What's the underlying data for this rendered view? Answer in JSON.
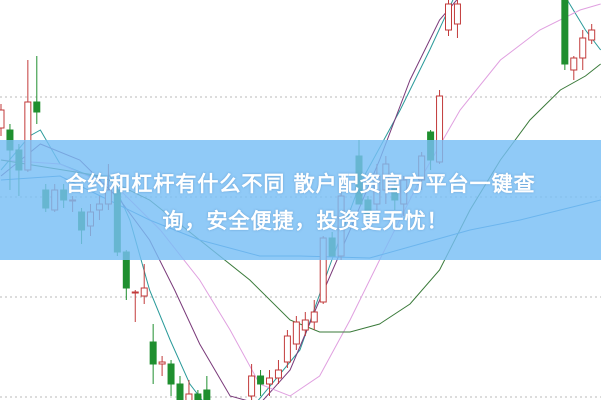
{
  "banner": {
    "line1": "合约和杠杆有什么不同 散户配资官方平台一键查",
    "line2": "询，安全便捷，投资更无忧！"
  },
  "chart_data": {
    "type": "candlestick",
    "title": "",
    "grid": true,
    "ylim": [
      0,
      100
    ],
    "xlim": [
      0,
      67
    ],
    "colors": {
      "up": "#c23a3a",
      "down": "#1f8f2f",
      "grid": "#b8b8b8",
      "banner": "#8ec8f5"
    },
    "candles": [
      {
        "day": 0,
        "open": 68,
        "close": 72.5,
        "high": 74,
        "low": 66
      },
      {
        "day": 1,
        "open": 67.5,
        "close": 62.5,
        "high": 69,
        "low": 52.5
      },
      {
        "day": 2,
        "open": 62.5,
        "close": 57.5,
        "high": 64,
        "low": 51
      },
      {
        "day": 3,
        "open": 57.5,
        "close": 74.5,
        "high": 85,
        "low": 57
      },
      {
        "day": 4,
        "open": 74.5,
        "close": 72,
        "high": 86,
        "low": 69
      },
      {
        "day": 5,
        "open": 52.5,
        "close": 48,
        "high": 54,
        "low": 47
      },
      {
        "day": 6,
        "open": 47.5,
        "close": 52.5,
        "high": 54,
        "low": 47
      },
      {
        "day": 7,
        "open": 52.5,
        "close": 50,
        "high": 54,
        "low": 48
      },
      {
        "day": 8,
        "open": 50,
        "close": 50,
        "high": 51,
        "low": 47
      },
      {
        "day": 9,
        "open": 47,
        "close": 42.5,
        "high": 48,
        "low": 39
      },
      {
        "day": 10,
        "open": 43.5,
        "close": 47,
        "high": 49,
        "low": 41
      },
      {
        "day": 11,
        "open": 47.5,
        "close": 49,
        "high": 51,
        "low": 45
      },
      {
        "day": 12,
        "open": 49,
        "close": 52.5,
        "high": 59,
        "low": 47.5
      },
      {
        "day": 13,
        "open": 52.5,
        "close": 37,
        "high": 54,
        "low": 36
      },
      {
        "day": 14,
        "open": 37,
        "close": 28,
        "high": 37.5,
        "low": 25
      },
      {
        "day": 15,
        "open": 27,
        "close": 27,
        "high": 27.5,
        "low": 19.5
      },
      {
        "day": 16,
        "open": 26,
        "close": 28,
        "high": 34,
        "low": 24
      },
      {
        "day": 17,
        "open": 14.5,
        "close": 9,
        "high": 19,
        "low": 4
      },
      {
        "day": 18,
        "open": 9,
        "close": 9.5,
        "high": 11,
        "low": 6
      },
      {
        "day": 19,
        "open": 9,
        "close": 4,
        "high": 10,
        "low": 1
      },
      {
        "day": 20,
        "open": 4,
        "close": 0,
        "high": 6,
        "low": 0
      },
      {
        "day": 21,
        "open": 0,
        "close": 1.5,
        "high": 5,
        "low": 0
      },
      {
        "day": 22,
        "open": 1.5,
        "close": 0,
        "high": 2.5,
        "low": 0
      },
      {
        "day": 23,
        "open": 2.5,
        "close": 0,
        "high": 6,
        "low": 0
      },
      {
        "day": 28,
        "open": 1,
        "close": 6,
        "high": 9,
        "low": 0
      },
      {
        "day": 29,
        "open": 6,
        "close": 4,
        "high": 7.5,
        "low": 1
      },
      {
        "day": 30,
        "open": 4,
        "close": 5.5,
        "high": 7.5,
        "low": 1
      },
      {
        "day": 31,
        "open": 5.5,
        "close": 7.5,
        "high": 10,
        "low": 4
      },
      {
        "day": 32,
        "open": 9.5,
        "close": 16,
        "high": 17.5,
        "low": 8
      },
      {
        "day": 33,
        "open": 14,
        "close": 19.5,
        "high": 21,
        "low": 12.5
      },
      {
        "day": 34,
        "open": 17.5,
        "close": 20,
        "high": 22,
        "low": 16
      },
      {
        "day": 35,
        "open": 19.5,
        "close": 22,
        "high": 25,
        "low": 17.5
      },
      {
        "day": 36,
        "open": 24.5,
        "close": 40.5,
        "high": 41,
        "low": 24
      },
      {
        "day": 37,
        "open": 40.5,
        "close": 36,
        "high": 42,
        "low": 36
      },
      {
        "day": 38,
        "open": 36,
        "close": 51,
        "high": 52.5,
        "low": 35
      },
      {
        "day": 40,
        "open": 61,
        "close": 49,
        "high": 65,
        "low": 50
      },
      {
        "day": 41,
        "open": 50,
        "close": 46,
        "high": 51,
        "low": 45
      },
      {
        "day": 42,
        "open": 49,
        "close": 56,
        "high": 59,
        "low": 47.5
      },
      {
        "day": 43,
        "open": 52.5,
        "close": 59,
        "high": 61,
        "low": 49
      },
      {
        "day": 44,
        "open": 53.5,
        "close": 50,
        "high": 55,
        "low": 47.5
      },
      {
        "day": 45,
        "open": 49,
        "close": 55,
        "high": 56,
        "low": 46
      },
      {
        "day": 47,
        "open": 55,
        "close": 61,
        "high": 62,
        "low": 52.5
      },
      {
        "day": 48,
        "open": 67,
        "close": 60,
        "high": 67.5,
        "low": 57.5
      },
      {
        "day": 49,
        "open": 59.5,
        "close": 76,
        "high": 77.5,
        "low": 59
      },
      {
        "day": 50,
        "open": 92.5,
        "close": 99,
        "high": 100,
        "low": 91
      },
      {
        "day": 51,
        "open": 94,
        "close": 99,
        "high": 100,
        "low": 90.5
      },
      {
        "day": 63,
        "open": 100,
        "close": 84,
        "high": 100,
        "low": 82.5
      },
      {
        "day": 64,
        "open": 82.5,
        "close": 85.5,
        "high": 86,
        "low": 80
      },
      {
        "day": 65,
        "open": 85.5,
        "close": 90.5,
        "high": 92.5,
        "low": 82.5
      },
      {
        "day": 66,
        "open": 90,
        "close": 92.5,
        "high": 94,
        "low": 89
      }
    ],
    "series": [
      {
        "color": "#2a9a9a",
        "points": [
          [
            0,
            57.5
          ],
          [
            3.2,
            66
          ],
          [
            4.4,
            67.5
          ],
          [
            6.6,
            59
          ],
          [
            10,
            56
          ],
          [
            12.2,
            56
          ],
          [
            14.4,
            45
          ],
          [
            16.6,
            27.5
          ],
          [
            18.9,
            15
          ],
          [
            21.1,
            4
          ],
          [
            22.8,
            0
          ],
          [
            28.4,
            0
          ],
          [
            33.4,
            12.5
          ],
          [
            36.8,
            34
          ],
          [
            40.1,
            54
          ],
          [
            44.6,
            72.5
          ],
          [
            47.9,
            87.5
          ],
          [
            50.7,
            100
          ],
          [
            63,
            100
          ],
          [
            65.3,
            92.5
          ],
          [
            67,
            87.5
          ]
        ]
      },
      {
        "color": "#7a3a7a",
        "points": [
          [
            0,
            56
          ],
          [
            4.4,
            64
          ],
          [
            8.8,
            60
          ],
          [
            13.3,
            50
          ],
          [
            16.6,
            40
          ],
          [
            19.4,
            27.5
          ],
          [
            22.2,
            14
          ],
          [
            25.6,
            1
          ],
          [
            28.9,
            0
          ],
          [
            32.3,
            7.5
          ],
          [
            35.6,
            25
          ],
          [
            39,
            42.5
          ],
          [
            42.3,
            60
          ],
          [
            45.7,
            80
          ],
          [
            49,
            95
          ],
          [
            51.3,
            100
          ]
        ]
      },
      {
        "color": "#e0a0e0",
        "points": [
          [
            0,
            60
          ],
          [
            6.6,
            59
          ],
          [
            13.3,
            52.5
          ],
          [
            17.8,
            42.5
          ],
          [
            22.2,
            30
          ],
          [
            25.6,
            17.5
          ],
          [
            28.9,
            4
          ],
          [
            32.3,
            1
          ],
          [
            35.6,
            6
          ],
          [
            39,
            20
          ],
          [
            42.3,
            35
          ],
          [
            46.8,
            55
          ],
          [
            51.3,
            72.5
          ],
          [
            55.8,
            85
          ],
          [
            60.2,
            92.5
          ],
          [
            64.7,
            97.5
          ],
          [
            67,
            99
          ]
        ]
      },
      {
        "color": "#3a7a3a",
        "points": [
          [
            0,
            60
          ],
          [
            11.1,
            56
          ],
          [
            16.6,
            50
          ],
          [
            22.2,
            40
          ],
          [
            27.8,
            30
          ],
          [
            32.3,
            20
          ],
          [
            35.6,
            17
          ],
          [
            39,
            17
          ],
          [
            42.3,
            19
          ],
          [
            45.7,
            24
          ],
          [
            49,
            32.5
          ],
          [
            52.4,
            47.5
          ],
          [
            55.8,
            60
          ],
          [
            59.1,
            70
          ],
          [
            62.5,
            77.5
          ],
          [
            65.3,
            81
          ],
          [
            67,
            84
          ]
        ]
      },
      {
        "color": "#3a8ac8",
        "points": [
          [
            0,
            55
          ],
          [
            6.6,
            56
          ],
          [
            11.1,
            51
          ],
          [
            16.6,
            45
          ],
          [
            22.2,
            40
          ],
          [
            28.9,
            36
          ],
          [
            33.4,
            36
          ],
          [
            41.2,
            35.5
          ],
          [
            46.8,
            39
          ],
          [
            52.4,
            42.5
          ],
          [
            58,
            45
          ],
          [
            62.5,
            47.5
          ],
          [
            67,
            50
          ]
        ]
      }
    ],
    "gridlines": [
      75,
      50,
      25,
      0
    ]
  }
}
